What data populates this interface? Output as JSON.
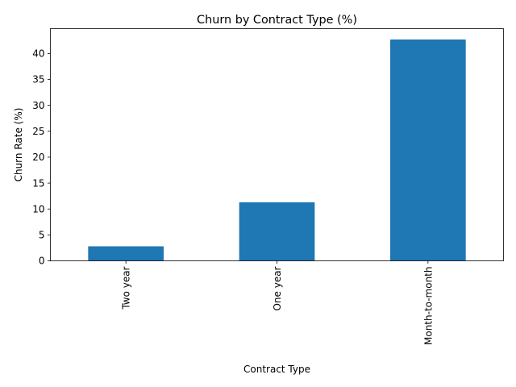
{
  "chart_data": {
    "type": "bar",
    "title": "Churn by Contract Type (%)",
    "xlabel": "Contract Type",
    "ylabel": "Churn Rate (%)",
    "categories": [
      "Two year",
      "One year",
      "Month-to-month"
    ],
    "values": [
      2.8,
      11.3,
      42.7
    ],
    "ylim": [
      0,
      44.8
    ],
    "yticks": [
      0,
      5,
      10,
      15,
      20,
      25,
      30,
      35,
      40
    ],
    "bar_color": "#1f77b4",
    "grid": false,
    "legend": "none"
  }
}
